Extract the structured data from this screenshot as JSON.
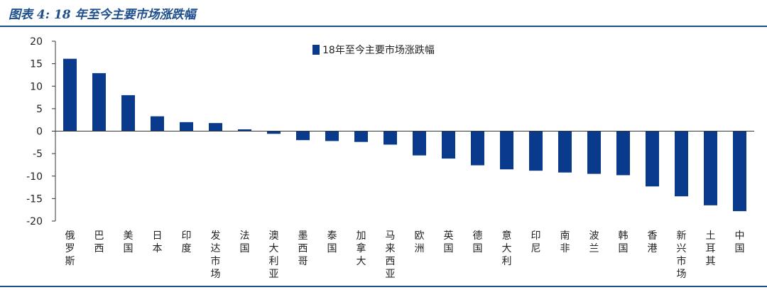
{
  "figure": {
    "title": "图表 4:  18 年至今主要市场涨跌幅"
  },
  "colors": {
    "bar": "#0a3a8c",
    "rule": "#1f4e8c",
    "axis": "#333333"
  },
  "chart_data": {
    "type": "bar",
    "title": "",
    "xlabel": "",
    "ylabel": "",
    "ylim": [
      -20,
      20
    ],
    "yticks": [
      20,
      15,
      10,
      5,
      0,
      -5,
      -10,
      -15,
      -20
    ],
    "legend": {
      "position": "top-center"
    },
    "grid": false,
    "categories": [
      "俄罗斯",
      "巴西",
      "美国",
      "日本",
      "印度",
      "发达市场",
      "法国",
      "澳大利亚",
      "墨西哥",
      "泰国",
      "加拿大",
      "马来西亚",
      "欧洲",
      "英国",
      "德国",
      "意大利",
      "印尼",
      "南非",
      "波兰",
      "韩国",
      "香港",
      "新兴市场",
      "土耳其",
      "中国"
    ],
    "series": [
      {
        "name": "18年至今主要市场涨跌幅",
        "values": [
          16.1,
          12.9,
          8.0,
          3.3,
          2.0,
          1.8,
          0.4,
          -0.6,
          -2.0,
          -2.2,
          -2.4,
          -3.0,
          -5.4,
          -6.1,
          -7.6,
          -8.5,
          -8.8,
          -9.2,
          -9.5,
          -9.8,
          -12.3,
          -14.5,
          -16.5,
          -17.8
        ]
      }
    ]
  }
}
